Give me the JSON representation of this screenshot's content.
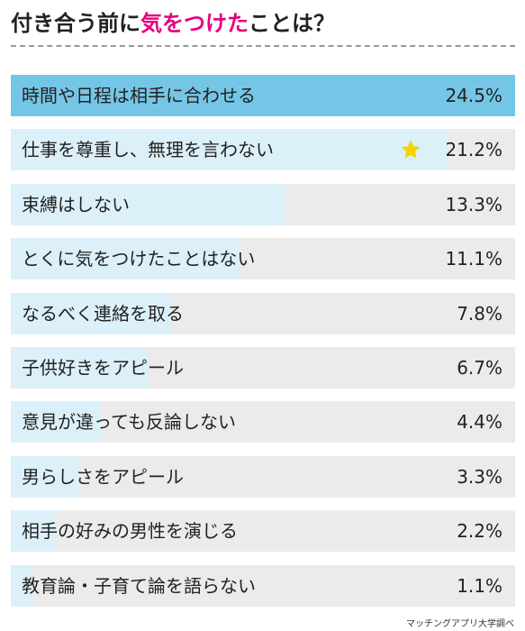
{
  "title_prefix": "付き合う前に",
  "title_highlight": "気をつけた",
  "title_suffix": "ことは？",
  "source": "マッチングアプリ大学調べ",
  "colors": {
    "title_highlight": "#e4007f",
    "top_fill": "#75c6e6",
    "fill": "#dcf0f9",
    "track": "#ebebeb",
    "star": "#f5d300"
  },
  "chart_data": {
    "type": "bar",
    "orientation": "horizontal",
    "categories": [
      "時間や日程は相手に合わせる",
      "仕事を尊重し、無理を言わない",
      "束縛はしない",
      "とくに気をつけたことはない",
      "なるべく連絡を取る",
      "子供好きをアピール",
      "意見が違っても反論しない",
      "男らしさをアピール",
      "相手の好みの男性を演じる",
      "教育論・子育て論を語らない"
    ],
    "values": [
      24.5,
      21.2,
      13.3,
      11.1,
      7.8,
      6.7,
      4.4,
      3.3,
      2.2,
      1.1
    ],
    "value_labels": [
      "24.5%",
      "21.2%",
      "13.3%",
      "11.1%",
      "7.8%",
      "6.7%",
      "4.4%",
      "3.3%",
      "2.2%",
      "1.1%"
    ],
    "unit": "%",
    "xlim": [
      0,
      24.5
    ],
    "star_index": 1
  }
}
